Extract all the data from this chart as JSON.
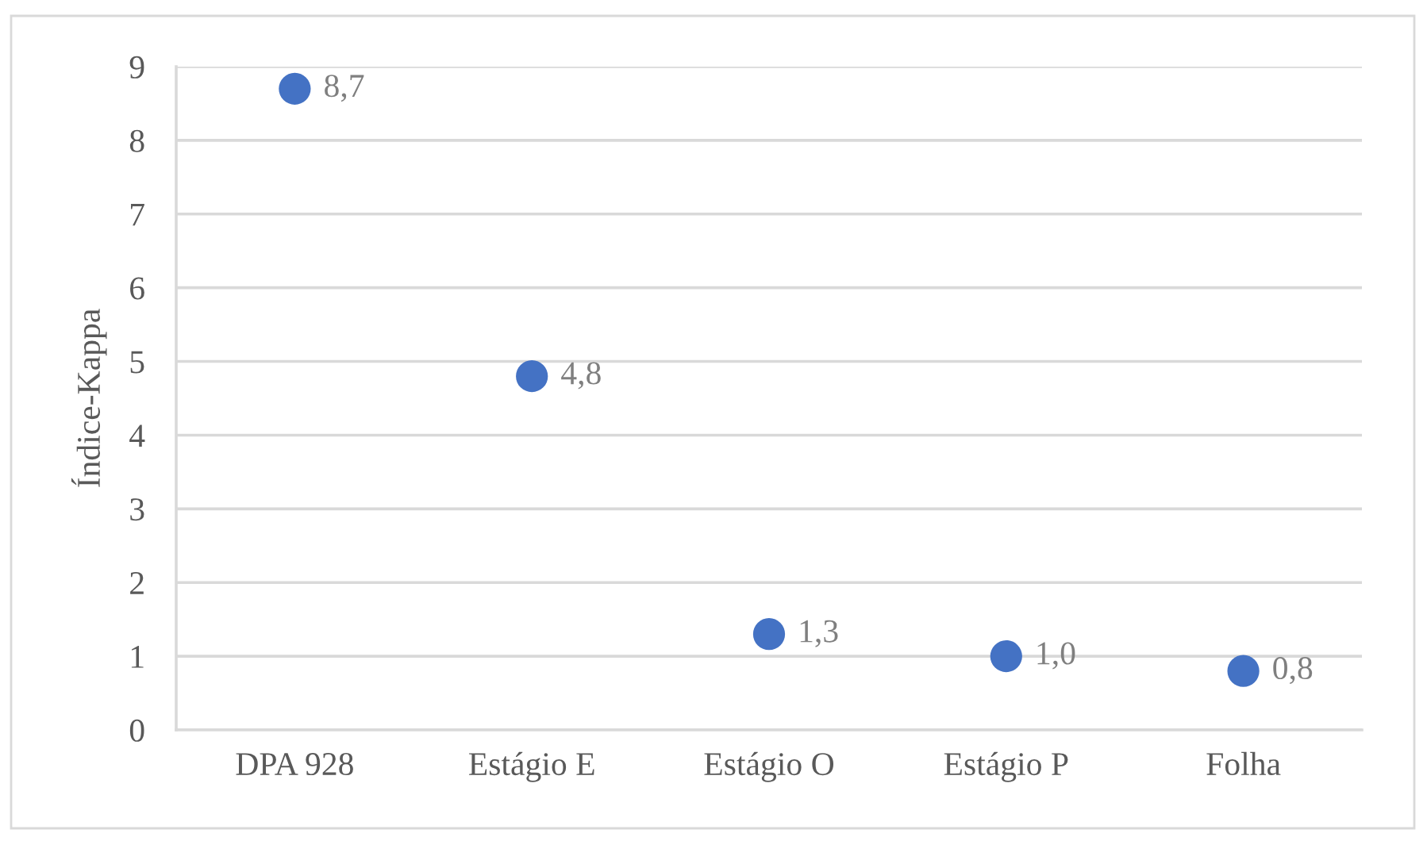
{
  "chart_data": {
    "type": "scatter",
    "ylabel": "Índice-Kappa",
    "categories": [
      "DPA 928",
      "Estágio E",
      "Estágio O",
      "Estágio P",
      "Folha"
    ],
    "series": [
      {
        "color": "#4472c4",
        "values": [
          8.7,
          4.8,
          1.3,
          1.0,
          0.8
        ],
        "value_labels": [
          "8,7",
          "4,8",
          "1,3",
          "1,0",
          "0,8"
        ]
      }
    ],
    "ylim": [
      0,
      9
    ],
    "yticks": [
      0,
      1,
      2,
      3,
      4,
      5,
      6,
      7,
      8,
      9
    ],
    "grid": "y",
    "marker": "circle"
  }
}
